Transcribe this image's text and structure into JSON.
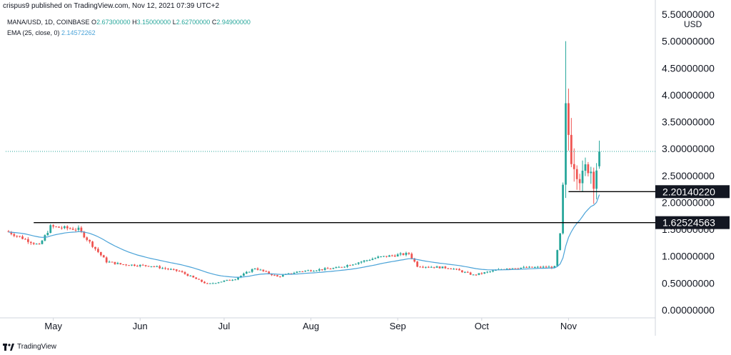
{
  "header": {
    "publisher_line": "crispus9 published on TradingView.com, Nov 12, 2021 07:39 UTC+2"
  },
  "legend": {
    "symbol_line_prefix": "MANA/USD, 1D, COINBASE",
    "o_label": "O",
    "o_value": "2.67300000",
    "h_label": "H",
    "h_value": "3.15000000",
    "l_label": "L",
    "l_value": "2.62700000",
    "c_label": "C",
    "c_value": "2.94900000",
    "ema_label": "EMA (25, close, 0)",
    "ema_value": "2.14572262"
  },
  "currency": "USD",
  "footer": {
    "brand": "TradingView"
  },
  "colors": {
    "up": "#26a69a",
    "down": "#ef5350",
    "ema": "#4ba3d8",
    "level_line": "#000000",
    "price_line": "#26a69a"
  },
  "chart_data": {
    "type": "candlestick",
    "ylim": [
      0,
      5.5
    ],
    "y_ticks": [
      "0.00000000",
      "0.50000000",
      "1.00000000",
      "1.50000000",
      "2.00000000",
      "2.50000000",
      "3.00000000",
      "3.50000000",
      "4.00000000",
      "4.50000000",
      "5.00000000",
      "5.50000000"
    ],
    "x_ticks": [
      {
        "label": "May",
        "date": "2021-05-01"
      },
      {
        "label": "Jun",
        "date": "2021-06-01"
      },
      {
        "label": "Jul",
        "date": "2021-07-01"
      },
      {
        "label": "Aug",
        "date": "2021-08-01"
      },
      {
        "label": "Sep",
        "date": "2021-09-01"
      },
      {
        "label": "Oct",
        "date": "2021-10-01"
      },
      {
        "label": "Nov",
        "date": "2021-11-01"
      }
    ],
    "x_range": [
      "2021-04-14",
      "2021-12-02"
    ],
    "key_anchors": [
      {
        "date": "2021-04-15",
        "close": 1.45
      },
      {
        "date": "2021-04-26",
        "close": 1.2
      },
      {
        "date": "2021-04-30",
        "close": 1.55
      },
      {
        "date": "2021-05-10",
        "close": 1.5
      },
      {
        "date": "2021-05-20",
        "close": 0.9
      },
      {
        "date": "2021-05-25",
        "close": 0.85
      },
      {
        "date": "2021-06-05",
        "close": 0.82
      },
      {
        "date": "2021-06-15",
        "close": 0.72
      },
      {
        "date": "2021-06-25",
        "close": 0.48
      },
      {
        "date": "2021-07-05",
        "close": 0.58
      },
      {
        "date": "2021-07-12",
        "close": 0.78
      },
      {
        "date": "2021-07-20",
        "close": 0.62
      },
      {
        "date": "2021-07-28",
        "close": 0.72
      },
      {
        "date": "2021-08-10",
        "close": 0.78
      },
      {
        "date": "2021-08-25",
        "close": 0.98
      },
      {
        "date": "2021-09-05",
        "close": 1.05
      },
      {
        "date": "2021-09-08",
        "close": 0.82
      },
      {
        "date": "2021-09-20",
        "close": 0.78
      },
      {
        "date": "2021-09-28",
        "close": 0.65
      },
      {
        "date": "2021-10-10",
        "close": 0.78
      },
      {
        "date": "2021-10-27",
        "close": 0.8
      },
      {
        "date": "2021-10-28",
        "close": 1.1
      },
      {
        "date": "2021-10-29",
        "close": 1.4
      },
      {
        "date": "2021-10-30",
        "close": 2.2
      },
      {
        "date": "2021-10-31",
        "close": 3.6
      },
      {
        "date": "2021-11-02",
        "close": 2.95
      },
      {
        "date": "2021-11-04",
        "close": 2.7
      },
      {
        "date": "2021-11-06",
        "close": 2.4
      },
      {
        "date": "2021-11-08",
        "close": 2.75
      },
      {
        "date": "2021-11-10",
        "close": 2.5
      },
      {
        "date": "2021-11-11",
        "close": 2.67
      },
      {
        "date": "2021-11-12",
        "close": 2.949
      }
    ],
    "spike_high": {
      "date": "2021-10-31",
      "high": 5.0
    },
    "ema": {
      "label": "EMA (25, close, 0)",
      "last": 2.14572262
    },
    "last_price": 2.949,
    "levels": [
      {
        "value": 2.2014022,
        "label": "2.20140220",
        "start_date": "2021-11-01",
        "end_date": "2021-12-02"
      },
      {
        "value": 1.62524563,
        "label": "1.62524563",
        "start_date": "2021-04-24",
        "end_date": "2021-12-02"
      }
    ]
  }
}
